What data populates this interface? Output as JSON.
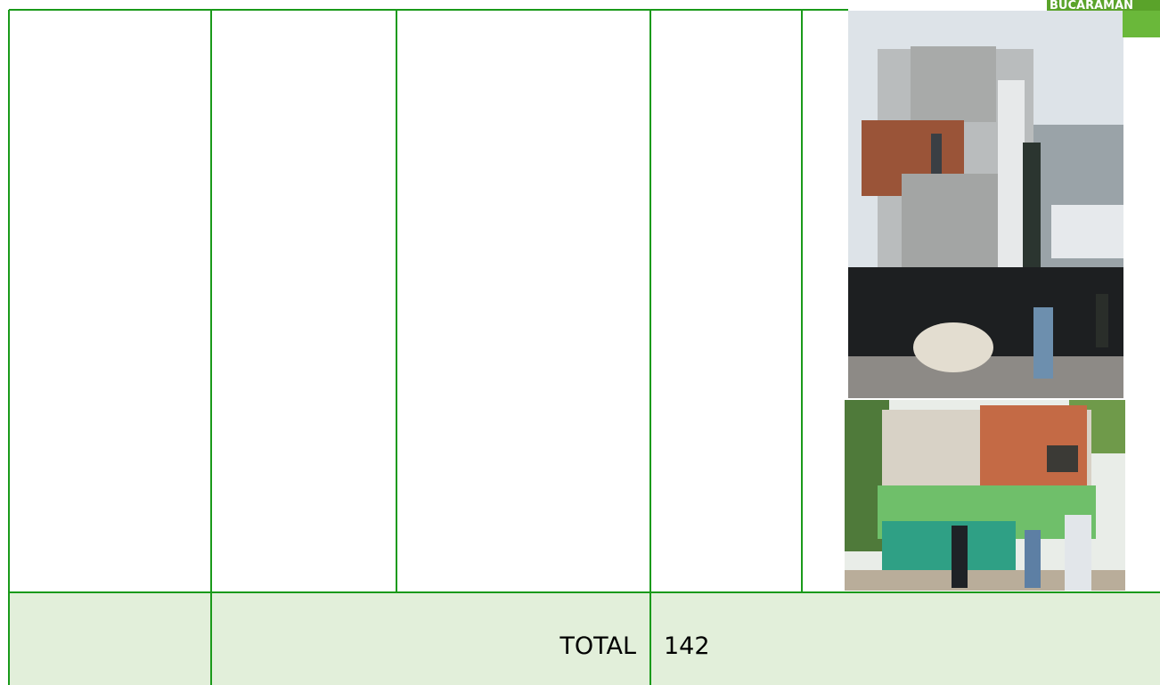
{
  "header": {
    "logo_text": "BUCARAMAN"
  },
  "table": {
    "total_label": "TOTAL",
    "total_value": 142
  }
}
